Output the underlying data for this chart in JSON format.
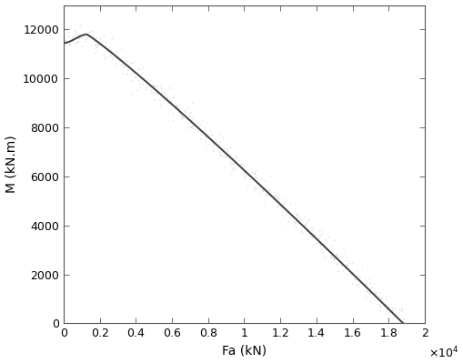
{
  "title": "",
  "xlabel": "Fa (kN)",
  "ylabel": "M (kN.m)",
  "xlim": [
    0,
    20000
  ],
  "ylim": [
    0,
    13000
  ],
  "xticks": [
    0,
    2000,
    4000,
    6000,
    8000,
    10000,
    12000,
    14000,
    16000,
    18000,
    20000
  ],
  "xtick_labels": [
    "0",
    "0.2",
    "0.4",
    "0.6",
    "0.8",
    "1",
    "1.2",
    "1.4",
    "1.6",
    "1.8",
    "2"
  ],
  "yticks": [
    0,
    2000,
    4000,
    6000,
    8000,
    10000,
    12000
  ],
  "curve_color": "#404040",
  "scatter_color": "#c8c8d8",
  "background_color": "#ffffff",
  "peak_x": 1300,
  "peak_y": 11800,
  "start_x": 0,
  "start_y": 11450,
  "end_x": 18800,
  "end_y": 0,
  "n_scatter": 600,
  "scatter_noise_y": 220,
  "scatter_noise_x": 150,
  "scatter_size": 1.2,
  "scatter_alpha": 0.55,
  "curve_linewidth": 1.4,
  "label_fontsize": 10,
  "tick_fontsize": 9
}
